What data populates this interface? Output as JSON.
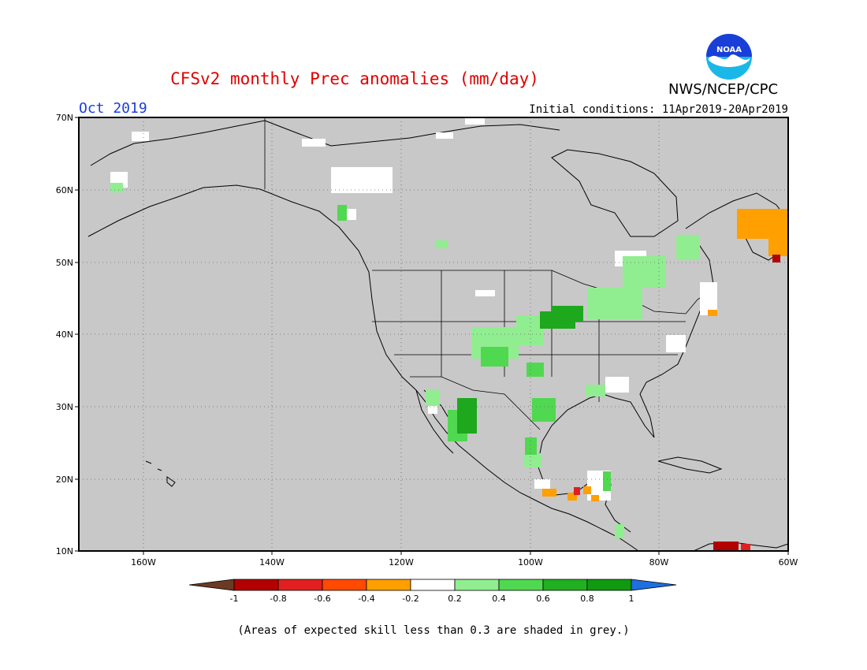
{
  "title": "CFSv2 monthly Prec anomalies (mm/day)",
  "month": "Oct 2019",
  "initial_conditions": "Initial conditions: 11Apr2019-20Apr2019",
  "agency": "NWS/NCEP/CPC",
  "logo_text": "NOAA",
  "footnote": "(Areas of expected skill less than 0.3 are shaded in grey.)",
  "map": {
    "lat_labels": [
      "70N",
      "60N",
      "50N",
      "40N",
      "30N",
      "20N",
      "10N"
    ],
    "lon_labels": [
      "160W",
      "140W",
      "120W",
      "100W",
      "80W",
      "60W"
    ],
    "lat_range": [
      10,
      70
    ],
    "lon_range": [
      -172,
      -60
    ],
    "background_color": "#c8c8c8",
    "gridlines": "dotted"
  },
  "colorbar": {
    "ticks": [
      "-1",
      "-0.8",
      "-0.6",
      "-0.4",
      "-0.2",
      "0.2",
      "0.4",
      "0.6",
      "0.8",
      "1"
    ],
    "colors": [
      "#6b3a22",
      "#b30000",
      "#e02020",
      "#ff4a00",
      "#ff9f00",
      "#ffffff",
      "#90ee90",
      "#50d850",
      "#20b020",
      "#109a10",
      "#1e6fe0"
    ]
  },
  "anomaly_regions": [
    {
      "name": "northern-plains",
      "class": "0.6 to 0.8",
      "color": "#1ea81e"
    },
    {
      "name": "colorado-kansas",
      "class": "0.2 to 0.4",
      "color": "#90ee90"
    },
    {
      "name": "great-lakes",
      "class": "0.2 to 0.4",
      "color": "#90ee90"
    },
    {
      "name": "sonora",
      "class": "0.6 to 0.8",
      "color": "#1ea81e"
    },
    {
      "name": "texas-coast",
      "class": "0.4 to 0.6",
      "color": "#50d850"
    },
    {
      "name": "newfoundland-labrador",
      "class": "-0.4 to -0.2",
      "color": "#ff9f00"
    },
    {
      "name": "venezuela-coast",
      "class": "-1 to -0.8",
      "color": "#b30000"
    }
  ]
}
